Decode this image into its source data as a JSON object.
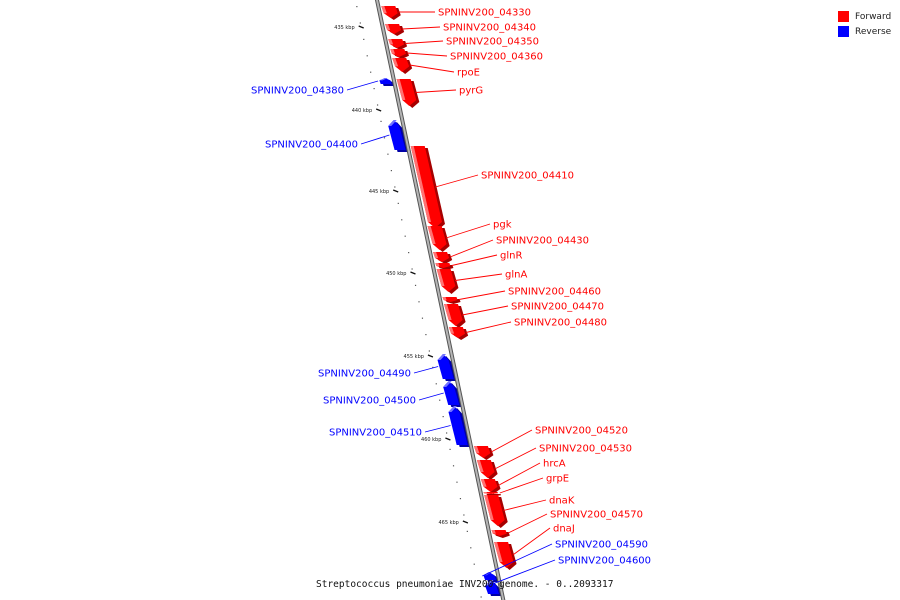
{
  "caption": "Streptococcus pneumoniae INV200 genome. - 0..2093317",
  "legend": [
    {
      "label": "Forward",
      "color": "#ff0000"
    },
    {
      "label": "Reverse",
      "color": "#0000ff"
    }
  ],
  "colors": {
    "forward": "#ff0000",
    "reverse": "#0000ff",
    "backbone": "#999999"
  },
  "ticks": [
    "435 kbp",
    "440 kbp",
    "445 kbp",
    "450 kbp",
    "455 kbp",
    "460 kbp",
    "465 kbp"
  ],
  "chart_data": {
    "type": "linear-genome-map",
    "units": "kbp",
    "ticks_kbp": [
      435,
      440,
      445,
      450,
      455,
      460,
      465
    ],
    "genes": [
      {
        "label": "SPNINV200_04330",
        "strand": "forward"
      },
      {
        "label": "SPNINV200_04340",
        "strand": "forward"
      },
      {
        "label": "SPNINV200_04350",
        "strand": "forward"
      },
      {
        "label": "SPNINV200_04360",
        "strand": "forward"
      },
      {
        "label": "rpoE",
        "strand": "forward"
      },
      {
        "label": "SPNINV200_04380",
        "strand": "reverse"
      },
      {
        "label": "pyrG",
        "strand": "forward"
      },
      {
        "label": "SPNINV200_04400",
        "strand": "reverse"
      },
      {
        "label": "SPNINV200_04410",
        "strand": "forward"
      },
      {
        "label": "pgk",
        "strand": "forward"
      },
      {
        "label": "SPNINV200_04430",
        "strand": "forward"
      },
      {
        "label": "glnR",
        "strand": "forward"
      },
      {
        "label": "glnA",
        "strand": "forward"
      },
      {
        "label": "SPNINV200_04460",
        "strand": "forward"
      },
      {
        "label": "SPNINV200_04470",
        "strand": "forward"
      },
      {
        "label": "SPNINV200_04480",
        "strand": "forward"
      },
      {
        "label": "SPNINV200_04490",
        "strand": "reverse"
      },
      {
        "label": "SPNINV200_04500",
        "strand": "reverse"
      },
      {
        "label": "SPNINV200_04510",
        "strand": "reverse"
      },
      {
        "label": "SPNINV200_04520",
        "strand": "forward"
      },
      {
        "label": "SPNINV200_04530",
        "strand": "forward"
      },
      {
        "label": "hrcA",
        "strand": "forward"
      },
      {
        "label": "grpE",
        "strand": "forward"
      },
      {
        "label": "dnaK",
        "strand": "forward"
      },
      {
        "label": "SPNINV200_04570",
        "strand": "forward"
      },
      {
        "label": "dnaJ",
        "strand": "forward"
      },
      {
        "label": "SPNINV200_04590",
        "strand": "reverse"
      },
      {
        "label": "SPNINV200_04600",
        "strand": "reverse"
      }
    ]
  }
}
